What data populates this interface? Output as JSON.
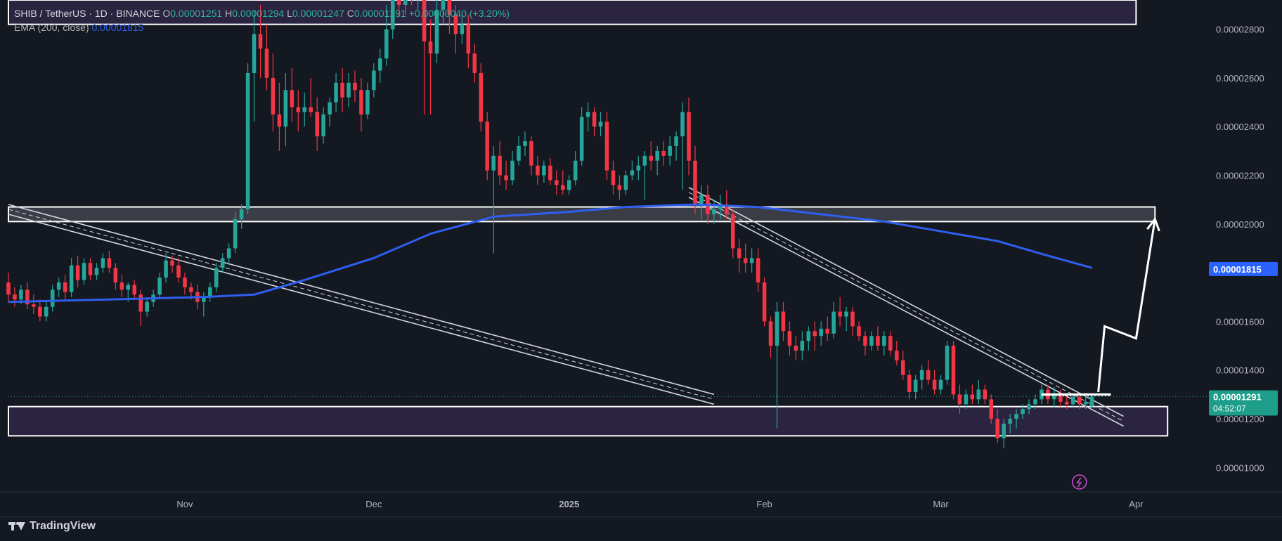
{
  "legend": {
    "symbol": "SHIB / TetherUS · 1D · BINANCE",
    "o_label": "O",
    "o_value": "0.00001251",
    "h_label": "H",
    "h_value": "0.00001294",
    "l_label": "L",
    "l_value": "0.00001247",
    "c_label": "C",
    "c_value": "0.00001291",
    "change": "+0.00000040 (+3.20%)",
    "ema_label": "EMA (200, close)",
    "ema_value": "0.00001815"
  },
  "price_scale": {
    "ticks": [
      "0.00002800",
      "0.00002600",
      "0.00002400",
      "0.00002200",
      "0.00002000",
      "0.00001600",
      "0.00001400",
      "0.00001200",
      "0.00001000"
    ],
    "ema_tag": "0.00001815",
    "price_tag": "0.00001291",
    "countdown": "04:52:07"
  },
  "time_axis": {
    "labels": [
      "Nov",
      "Dec",
      "2025",
      "Feb",
      "Mar",
      "Apr"
    ]
  },
  "brand": {
    "name": "TradingView"
  },
  "colors": {
    "background": "#141820",
    "up": "#26a69a",
    "down": "#f23645",
    "ema": "#2f5ff0",
    "zone": "#2b2440",
    "label_blue": "#2962ff"
  },
  "chart_data": {
    "type": "candlestick",
    "interval": "1D",
    "y_range": [
      9e-06,
      2.92e-05
    ],
    "x_range": [
      "2024-10-04",
      "2025-04-12"
    ],
    "candles": [
      [
        "2024-10-04",
        1.76,
        1.8,
        1.68,
        1.71
      ],
      [
        "2024-10-05",
        1.71,
        1.74,
        1.66,
        1.69
      ],
      [
        "2024-10-06",
        1.69,
        1.75,
        1.67,
        1.73
      ],
      [
        "2024-10-07",
        1.73,
        1.76,
        1.65,
        1.67
      ],
      [
        "2024-10-08",
        1.67,
        1.71,
        1.63,
        1.66
      ],
      [
        "2024-10-09",
        1.66,
        1.69,
        1.6,
        1.62
      ],
      [
        "2024-10-10",
        1.62,
        1.68,
        1.6,
        1.66
      ],
      [
        "2024-10-11",
        1.66,
        1.75,
        1.64,
        1.73
      ],
      [
        "2024-10-12",
        1.73,
        1.78,
        1.7,
        1.76
      ],
      [
        "2024-10-13",
        1.76,
        1.79,
        1.69,
        1.72
      ],
      [
        "2024-10-14",
        1.72,
        1.86,
        1.7,
        1.83
      ],
      [
        "2024-10-15",
        1.83,
        1.87,
        1.74,
        1.77
      ],
      [
        "2024-10-16",
        1.77,
        1.86,
        1.75,
        1.84
      ],
      [
        "2024-10-17",
        1.84,
        1.86,
        1.77,
        1.79
      ],
      [
        "2024-10-18",
        1.79,
        1.84,
        1.77,
        1.82
      ],
      [
        "2024-10-19",
        1.82,
        1.88,
        1.8,
        1.86
      ],
      [
        "2024-10-20",
        1.86,
        1.89,
        1.8,
        1.82
      ],
      [
        "2024-10-21",
        1.82,
        1.84,
        1.73,
        1.76
      ],
      [
        "2024-10-22",
        1.76,
        1.79,
        1.7,
        1.73
      ],
      [
        "2024-10-23",
        1.73,
        1.76,
        1.68,
        1.75
      ],
      [
        "2024-10-24",
        1.75,
        1.77,
        1.69,
        1.71
      ],
      [
        "2024-10-25",
        1.71,
        1.73,
        1.58,
        1.64
      ],
      [
        "2024-10-26",
        1.64,
        1.69,
        1.62,
        1.68
      ],
      [
        "2024-10-27",
        1.68,
        1.73,
        1.66,
        1.71
      ],
      [
        "2024-10-28",
        1.71,
        1.8,
        1.7,
        1.78
      ],
      [
        "2024-10-29",
        1.78,
        1.88,
        1.76,
        1.85
      ],
      [
        "2024-10-30",
        1.85,
        1.87,
        1.8,
        1.83
      ],
      [
        "2024-10-31",
        1.83,
        1.86,
        1.76,
        1.78
      ],
      [
        "2024-11-01",
        1.78,
        1.8,
        1.71,
        1.74
      ],
      [
        "2024-11-02",
        1.74,
        1.76,
        1.69,
        1.72
      ],
      [
        "2024-11-03",
        1.72,
        1.75,
        1.65,
        1.68
      ],
      [
        "2024-11-04",
        1.68,
        1.72,
        1.62,
        1.7
      ],
      [
        "2024-11-05",
        1.7,
        1.76,
        1.68,
        1.74
      ],
      [
        "2024-11-06",
        1.74,
        1.84,
        1.72,
        1.82
      ],
      [
        "2024-11-07",
        1.82,
        1.88,
        1.8,
        1.86
      ],
      [
        "2024-11-08",
        1.86,
        1.92,
        1.83,
        1.9
      ],
      [
        "2024-11-09",
        1.9,
        2.05,
        1.88,
        2.02
      ],
      [
        "2024-11-10",
        2.02,
        2.08,
        1.98,
        2.06
      ],
      [
        "2024-11-11",
        2.06,
        2.66,
        2.04,
        2.62
      ],
      [
        "2024-11-12",
        2.62,
        2.88,
        2.42,
        2.78
      ],
      [
        "2024-11-13",
        2.78,
        2.9,
        2.6,
        2.72
      ],
      [
        "2024-11-14",
        2.72,
        2.82,
        2.55,
        2.6
      ],
      [
        "2024-11-15",
        2.6,
        2.7,
        2.38,
        2.45
      ],
      [
        "2024-11-16",
        2.45,
        2.58,
        2.3,
        2.4
      ],
      [
        "2024-11-17",
        2.4,
        2.62,
        2.32,
        2.55
      ],
      [
        "2024-11-18",
        2.55,
        2.64,
        2.42,
        2.48
      ],
      [
        "2024-11-19",
        2.48,
        2.55,
        2.38,
        2.46
      ],
      [
        "2024-11-20",
        2.46,
        2.54,
        2.4,
        2.48
      ],
      [
        "2024-11-21",
        2.48,
        2.6,
        2.44,
        2.46
      ],
      [
        "2024-11-22",
        2.46,
        2.52,
        2.3,
        2.36
      ],
      [
        "2024-11-23",
        2.36,
        2.48,
        2.33,
        2.45
      ],
      [
        "2024-11-24",
        2.45,
        2.52,
        2.4,
        2.5
      ],
      [
        "2024-11-25",
        2.5,
        2.62,
        2.46,
        2.58
      ],
      [
        "2024-11-26",
        2.58,
        2.64,
        2.46,
        2.52
      ],
      [
        "2024-11-27",
        2.52,
        2.62,
        2.48,
        2.58
      ],
      [
        "2024-11-28",
        2.58,
        2.63,
        2.5,
        2.55
      ],
      [
        "2024-11-29",
        2.55,
        2.6,
        2.38,
        2.45
      ],
      [
        "2024-11-30",
        2.45,
        2.58,
        2.43,
        2.55
      ],
      [
        "2024-12-01",
        2.55,
        2.66,
        2.52,
        2.63
      ],
      [
        "2024-12-02",
        2.63,
        2.72,
        2.58,
        2.68
      ],
      [
        "2024-12-03",
        2.68,
        2.9,
        2.65,
        2.8
      ],
      [
        "2024-12-04",
        2.8,
        2.99,
        2.76,
        2.94
      ],
      [
        "2024-12-05",
        2.94,
        3.05,
        2.85,
        2.9
      ],
      [
        "2024-12-06",
        2.9,
        3.08,
        2.86,
        3.0
      ],
      [
        "2024-12-07",
        3.0,
        3.1,
        2.9,
        2.96
      ],
      [
        "2024-12-08",
        2.96,
        3.02,
        2.88,
        2.98
      ],
      [
        "2024-12-09",
        2.98,
        3.0,
        2.45,
        2.75
      ],
      [
        "2024-12-10",
        2.75,
        2.84,
        2.45,
        2.7
      ],
      [
        "2024-12-11",
        2.7,
        2.92,
        2.66,
        2.88
      ],
      [
        "2024-12-12",
        2.88,
        2.98,
        2.82,
        2.92
      ],
      [
        "2024-12-13",
        2.92,
        2.96,
        2.78,
        2.86
      ],
      [
        "2024-12-14",
        2.86,
        2.9,
        2.7,
        2.78
      ],
      [
        "2024-12-15",
        2.78,
        2.86,
        2.74,
        2.82
      ],
      [
        "2024-12-16",
        2.82,
        2.86,
        2.64,
        2.7
      ],
      [
        "2024-12-17",
        2.7,
        2.74,
        2.58,
        2.62
      ],
      [
        "2024-12-18",
        2.62,
        2.66,
        2.38,
        2.42
      ],
      [
        "2024-12-19",
        2.42,
        2.46,
        2.18,
        2.22
      ],
      [
        "2024-12-20",
        2.22,
        2.32,
        1.88,
        2.28
      ],
      [
        "2024-12-21",
        2.28,
        2.34,
        2.16,
        2.2
      ],
      [
        "2024-12-22",
        2.2,
        2.26,
        2.14,
        2.18
      ],
      [
        "2024-12-23",
        2.18,
        2.3,
        2.16,
        2.26
      ],
      [
        "2024-12-24",
        2.26,
        2.36,
        2.24,
        2.32
      ],
      [
        "2024-12-25",
        2.32,
        2.38,
        2.28,
        2.34
      ],
      [
        "2024-12-26",
        2.34,
        2.36,
        2.2,
        2.24
      ],
      [
        "2024-12-27",
        2.24,
        2.28,
        2.16,
        2.2
      ],
      [
        "2024-12-28",
        2.2,
        2.26,
        2.17,
        2.24
      ],
      [
        "2024-12-29",
        2.24,
        2.27,
        2.16,
        2.18
      ],
      [
        "2024-12-30",
        2.18,
        2.22,
        2.12,
        2.16
      ],
      [
        "2024-12-31",
        2.16,
        2.22,
        2.12,
        2.14
      ],
      [
        "2025-01-01",
        2.14,
        2.2,
        2.12,
        2.18
      ],
      [
        "2025-01-02",
        2.18,
        2.3,
        2.16,
        2.26
      ],
      [
        "2025-01-03",
        2.26,
        2.48,
        2.24,
        2.44
      ],
      [
        "2025-01-04",
        2.44,
        2.5,
        2.38,
        2.46
      ],
      [
        "2025-01-05",
        2.46,
        2.48,
        2.36,
        2.4
      ],
      [
        "2025-01-06",
        2.4,
        2.46,
        2.36,
        2.42
      ],
      [
        "2025-01-07",
        2.42,
        2.46,
        2.18,
        2.22
      ],
      [
        "2025-01-08",
        2.22,
        2.26,
        2.12,
        2.16
      ],
      [
        "2025-01-09",
        2.16,
        2.2,
        2.1,
        2.14
      ],
      [
        "2025-01-10",
        2.14,
        2.22,
        2.12,
        2.2
      ],
      [
        "2025-01-11",
        2.2,
        2.26,
        2.18,
        2.22
      ],
      [
        "2025-01-12",
        2.22,
        2.28,
        2.18,
        2.24
      ],
      [
        "2025-01-13",
        2.24,
        2.3,
        2.1,
        2.28
      ],
      [
        "2025-01-14",
        2.28,
        2.34,
        2.22,
        2.26
      ],
      [
        "2025-01-15",
        2.26,
        2.32,
        2.2,
        2.3
      ],
      [
        "2025-01-16",
        2.3,
        2.34,
        2.24,
        2.28
      ],
      [
        "2025-01-17",
        2.28,
        2.36,
        2.24,
        2.32
      ],
      [
        "2025-01-18",
        2.32,
        2.38,
        2.26,
        2.36
      ],
      [
        "2025-01-19",
        2.36,
        2.5,
        2.14,
        2.46
      ],
      [
        "2025-01-20",
        2.46,
        2.52,
        2.2,
        2.26
      ],
      [
        "2025-01-21",
        2.26,
        2.32,
        2.04,
        2.08
      ],
      [
        "2025-01-22",
        2.08,
        2.16,
        2.02,
        2.12
      ],
      [
        "2025-01-23",
        2.12,
        2.16,
        2.0,
        2.04
      ],
      [
        "2025-01-24",
        2.04,
        2.1,
        2.0,
        2.06
      ],
      [
        "2025-01-25",
        2.06,
        2.12,
        2.02,
        2.08
      ],
      [
        "2025-01-26",
        2.08,
        2.14,
        2.02,
        2.04
      ],
      [
        "2025-01-27",
        2.04,
        2.06,
        1.86,
        1.9
      ],
      [
        "2025-01-28",
        1.9,
        1.94,
        1.8,
        1.86
      ],
      [
        "2025-01-29",
        1.86,
        1.92,
        1.8,
        1.84
      ],
      [
        "2025-01-30",
        1.84,
        1.9,
        1.8,
        1.86
      ],
      [
        "2025-01-31",
        1.86,
        1.9,
        1.72,
        1.76
      ],
      [
        "2025-02-01",
        1.76,
        1.78,
        1.58,
        1.6
      ],
      [
        "2025-02-02",
        1.6,
        1.62,
        1.45,
        1.5
      ],
      [
        "2025-02-03",
        1.5,
        1.68,
        1.16,
        1.64
      ],
      [
        "2025-02-04",
        1.64,
        1.68,
        1.52,
        1.56
      ],
      [
        "2025-02-05",
        1.56,
        1.6,
        1.46,
        1.5
      ],
      [
        "2025-02-06",
        1.5,
        1.54,
        1.44,
        1.48
      ],
      [
        "2025-02-07",
        1.48,
        1.56,
        1.44,
        1.52
      ],
      [
        "2025-02-08",
        1.52,
        1.58,
        1.48,
        1.56
      ],
      [
        "2025-02-09",
        1.56,
        1.6,
        1.48,
        1.54
      ],
      [
        "2025-02-10",
        1.54,
        1.6,
        1.5,
        1.57
      ],
      [
        "2025-02-11",
        1.57,
        1.62,
        1.52,
        1.55
      ],
      [
        "2025-02-12",
        1.55,
        1.68,
        1.53,
        1.64
      ],
      [
        "2025-02-13",
        1.64,
        1.7,
        1.58,
        1.62
      ],
      [
        "2025-02-14",
        1.62,
        1.66,
        1.56,
        1.64
      ],
      [
        "2025-02-15",
        1.64,
        1.66,
        1.54,
        1.58
      ],
      [
        "2025-02-16",
        1.58,
        1.6,
        1.52,
        1.54
      ],
      [
        "2025-02-17",
        1.54,
        1.56,
        1.46,
        1.5
      ],
      [
        "2025-02-18",
        1.5,
        1.56,
        1.48,
        1.54
      ],
      [
        "2025-02-19",
        1.54,
        1.58,
        1.48,
        1.5
      ],
      [
        "2025-02-20",
        1.5,
        1.56,
        1.46,
        1.54
      ],
      [
        "2025-02-21",
        1.54,
        1.56,
        1.46,
        1.48
      ],
      [
        "2025-02-22",
        1.48,
        1.52,
        1.42,
        1.44
      ],
      [
        "2025-02-23",
        1.44,
        1.48,
        1.36,
        1.38
      ],
      [
        "2025-02-24",
        1.38,
        1.4,
        1.28,
        1.31
      ],
      [
        "2025-02-25",
        1.31,
        1.38,
        1.28,
        1.36
      ],
      [
        "2025-02-26",
        1.36,
        1.42,
        1.32,
        1.4
      ],
      [
        "2025-02-27",
        1.4,
        1.44,
        1.34,
        1.36
      ],
      [
        "2025-02-28",
        1.36,
        1.4,
        1.3,
        1.32
      ],
      [
        "2025-03-01",
        1.32,
        1.38,
        1.3,
        1.36
      ],
      [
        "2025-03-02",
        1.36,
        1.52,
        1.34,
        1.5
      ],
      [
        "2025-03-03",
        1.5,
        1.52,
        1.28,
        1.3
      ],
      [
        "2025-03-04",
        1.3,
        1.34,
        1.22,
        1.26
      ],
      [
        "2025-03-05",
        1.26,
        1.32,
        1.24,
        1.3
      ],
      [
        "2025-03-06",
        1.3,
        1.34,
        1.26,
        1.28
      ],
      [
        "2025-03-07",
        1.28,
        1.36,
        1.26,
        1.32
      ],
      [
        "2025-03-08",
        1.32,
        1.34,
        1.26,
        1.28
      ],
      [
        "2025-03-09",
        1.28,
        1.3,
        1.18,
        1.2
      ],
      [
        "2025-03-10",
        1.2,
        1.24,
        1.1,
        1.12
      ],
      [
        "2025-03-11",
        1.12,
        1.2,
        1.08,
        1.18
      ],
      [
        "2025-03-12",
        1.18,
        1.22,
        1.14,
        1.2
      ],
      [
        "2025-03-13",
        1.2,
        1.24,
        1.16,
        1.22
      ],
      [
        "2025-03-14",
        1.22,
        1.26,
        1.2,
        1.24
      ],
      [
        "2025-03-15",
        1.24,
        1.28,
        1.22,
        1.26
      ],
      [
        "2025-03-16",
        1.26,
        1.3,
        1.24,
        1.28
      ],
      [
        "2025-03-17",
        1.28,
        1.34,
        1.26,
        1.32
      ],
      [
        "2025-03-18",
        1.32,
        1.34,
        1.26,
        1.28
      ],
      [
        "2025-03-19",
        1.28,
        1.33,
        1.25,
        1.3
      ],
      [
        "2025-03-20",
        1.3,
        1.32,
        1.25,
        1.27
      ],
      [
        "2025-03-21",
        1.27,
        1.3,
        1.24,
        1.26
      ],
      [
        "2025-03-22",
        1.26,
        1.3,
        1.25,
        1.29
      ],
      [
        "2025-03-23",
        1.29,
        1.3,
        1.24,
        1.26
      ],
      [
        "2025-03-24",
        1.26,
        1.3,
        1.24,
        1.27
      ],
      [
        "2025-03-25",
        1.251,
        1.294,
        1.247,
        1.291
      ]
    ],
    "candle_units": "×0.00001 USDT",
    "ema": {
      "name": "EMA (200, close)",
      "points": [
        [
          "2024-10-04",
          1.68
        ],
        [
          "2024-10-20",
          1.69
        ],
        [
          "2024-11-04",
          1.7
        ],
        [
          "2024-11-12",
          1.71
        ],
        [
          "2024-11-20",
          1.77
        ],
        [
          "2024-12-01",
          1.86
        ],
        [
          "2024-12-10",
          1.96
        ],
        [
          "2024-12-20",
          2.03
        ],
        [
          "2025-01-01",
          2.05
        ],
        [
          "2025-01-10",
          2.07
        ],
        [
          "2025-01-21",
          2.08
        ],
        [
          "2025-01-31",
          2.07
        ],
        [
          "2025-02-10",
          2.04
        ],
        [
          "2025-02-20",
          2.01
        ],
        [
          "2025-03-01",
          1.97
        ],
        [
          "2025-03-10",
          1.93
        ],
        [
          "2025-03-18",
          1.87
        ],
        [
          "2025-03-25",
          1.82
        ]
      ]
    },
    "annotations": {
      "top_zone": {
        "from": "2024-10-04",
        "to": "2025-04-01",
        "low": 2.82,
        "high": 2.92
      },
      "mid_zone": {
        "from": "2024-10-04",
        "to": "2025-04-04",
        "low": 2.01,
        "high": 2.07
      },
      "bottom_zone": {
        "from": "2024-10-04",
        "to": "2025-04-06",
        "low": 1.13,
        "high": 1.25
      },
      "channel_1": {
        "from": [
          "2024-10-04",
          2.06
        ],
        "to": [
          "2025-01-24",
          1.28
        ]
      },
      "channel_2": {
        "from": [
          "2025-01-20",
          2.13
        ],
        "to": [
          "2025-03-30",
          1.19
        ]
      },
      "flag": {
        "from": "2025-03-17",
        "to": "2025-03-28",
        "level": 1.3
      },
      "projection": [
        [
          "2025-03-26",
          1.31
        ],
        [
          "2025-03-27",
          1.58
        ],
        [
          "2025-04-01",
          1.53
        ],
        [
          "2025-04-04",
          2.02
        ]
      ]
    }
  }
}
